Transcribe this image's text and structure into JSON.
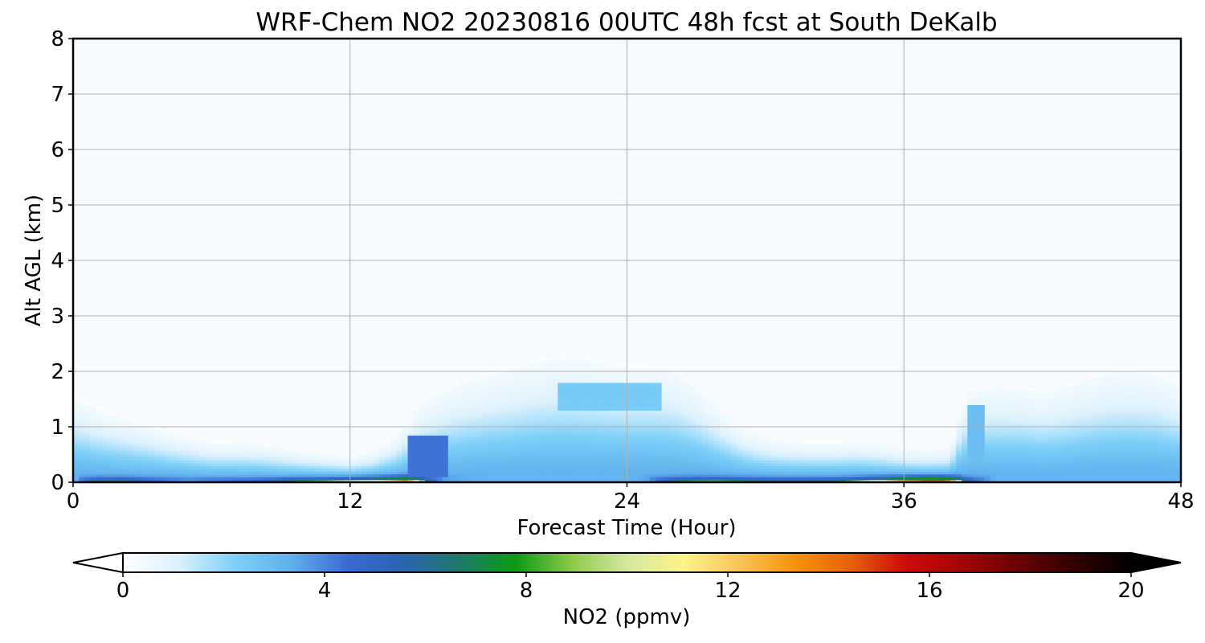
{
  "chart_data": {
    "type": "heatmap",
    "title": "WRF-Chem NO2  20230816 00UTC 48h fcst at South DeKalb",
    "xlabel": "Forecast Time (Hour)",
    "ylabel": "Alt AGL (km)",
    "xlim": [
      0,
      48
    ],
    "ylim": [
      0,
      8
    ],
    "xticks": [
      0,
      12,
      24,
      36,
      48
    ],
    "yticks": [
      0,
      1,
      2,
      3,
      4,
      5,
      6,
      7,
      8
    ],
    "grid": true,
    "colorbar": {
      "label": "NO2  (ppmv)",
      "range": [
        0,
        20
      ],
      "ticks": [
        0,
        4,
        8,
        12,
        16,
        20
      ],
      "extend": "both",
      "colors": [
        "#ffffff",
        "#dbf1fd",
        "#7dd0f8",
        "#5fb0ee",
        "#3b6ad2",
        "#2a63b0",
        "#1d7a6a",
        "#0b9a12",
        "#8cc84a",
        "#d4ea9e",
        "#fdf38a",
        "#f9c45a",
        "#f7920a",
        "#e6600d",
        "#cc0a08",
        "#a00505",
        "#6a0202",
        "#320000",
        "#000000"
      ],
      "underflow_color": "#ffffff",
      "overflow_color": "#000000"
    },
    "boundary_layer_top_km": [
      [
        0,
        1.5
      ],
      [
        1,
        1.3
      ],
      [
        2,
        1.15
      ],
      [
        3,
        1.05
      ],
      [
        4,
        0.9
      ],
      [
        5,
        0.8
      ],
      [
        6,
        0.7
      ],
      [
        7,
        0.7
      ],
      [
        8,
        0.68
      ],
      [
        9,
        0.62
      ],
      [
        10,
        0.55
      ],
      [
        11,
        0.5
      ],
      [
        12,
        0.45
      ],
      [
        13,
        0.55
      ],
      [
        14,
        0.8
      ],
      [
        15,
        1.35
      ],
      [
        16,
        1.62
      ],
      [
        17,
        1.78
      ],
      [
        18,
        1.9
      ],
      [
        19,
        2.0
      ],
      [
        20,
        2.12
      ],
      [
        21,
        2.2
      ],
      [
        22,
        2.18
      ],
      [
        23,
        2.1
      ],
      [
        24,
        2.05
      ],
      [
        25,
        2.05
      ],
      [
        26,
        2.0
      ],
      [
        27,
        1.7
      ],
      [
        28,
        1.3
      ],
      [
        29,
        0.95
      ],
      [
        30,
        0.78
      ],
      [
        31,
        0.72
      ],
      [
        32,
        0.7
      ],
      [
        33,
        0.7
      ],
      [
        34,
        0.72
      ],
      [
        35,
        0.68
      ],
      [
        36,
        0.6
      ],
      [
        37,
        0.58
      ],
      [
        38,
        0.6
      ],
      [
        38.4,
        1.2
      ],
      [
        38.8,
        1.62
      ],
      [
        40,
        1.7
      ],
      [
        41,
        1.68
      ],
      [
        42,
        1.6
      ],
      [
        43,
        1.7
      ],
      [
        44,
        1.85
      ],
      [
        45,
        1.95
      ],
      [
        46,
        1.98
      ],
      [
        47,
        1.9
      ],
      [
        48,
        1.7
      ]
    ],
    "surface_no2_ppmv": [
      [
        0,
        2.8
      ],
      [
        1,
        6.5
      ],
      [
        2,
        6.8
      ],
      [
        3,
        5.5
      ],
      [
        4,
        4.3
      ],
      [
        5,
        3.8
      ],
      [
        6,
        4.2
      ],
      [
        7,
        4.5
      ],
      [
        8,
        5.0
      ],
      [
        9,
        6.0
      ],
      [
        10,
        7.8
      ],
      [
        11,
        9.0
      ],
      [
        12,
        11.2
      ],
      [
        13,
        13.0
      ],
      [
        14,
        16.5
      ],
      [
        14.4,
        18.5
      ],
      [
        14.9,
        13.5
      ],
      [
        15.4,
        5.8
      ],
      [
        16,
        3.6
      ],
      [
        17,
        3.3
      ],
      [
        18,
        3.2
      ],
      [
        20,
        3.1
      ],
      [
        22,
        3.1
      ],
      [
        24,
        3.0
      ],
      [
        25,
        3.6
      ],
      [
        26,
        6.5
      ],
      [
        27,
        8.4
      ],
      [
        28,
        8.6
      ],
      [
        29,
        7.4
      ],
      [
        30,
        6.2
      ],
      [
        31,
        6.0
      ],
      [
        32,
        6.2
      ],
      [
        33,
        6.5
      ],
      [
        34,
        9.5
      ],
      [
        35,
        13.5
      ],
      [
        36,
        18.0
      ],
      [
        37,
        20.5
      ],
      [
        37.8,
        20.0
      ],
      [
        38.3,
        15.0
      ],
      [
        38.6,
        7.5
      ],
      [
        39,
        4.5
      ],
      [
        40,
        3.2
      ],
      [
        44,
        3.1
      ],
      [
        48,
        3.0
      ]
    ],
    "upper_pockets": [
      {
        "x": [
          21,
          25.5
        ],
        "y": [
          1.3,
          1.8
        ],
        "no2_ppmv": 2.4
      },
      {
        "x": [
          14.6,
          16.2
        ],
        "y": [
          0.1,
          0.85
        ],
        "no2_ppmv": 4.3
      },
      {
        "x": [
          38.7,
          39.6
        ],
        "y": [
          0.2,
          1.4
        ],
        "no2_ppmv": 2.8
      }
    ]
  }
}
